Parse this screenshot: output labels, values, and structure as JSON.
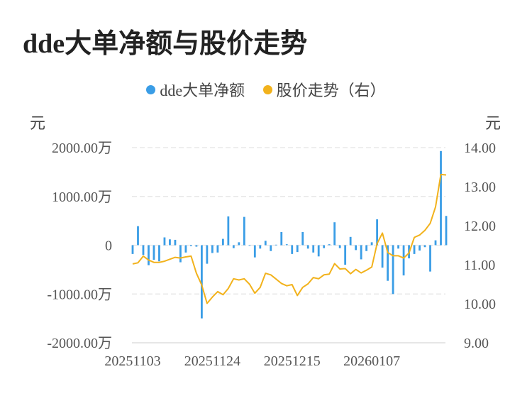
{
  "title": "dde大单净额与股价走势",
  "colors": {
    "bars": "#3a9de6",
    "price": "#f2b21c",
    "grid": "#e4e4e4",
    "axis": "#cccccc"
  },
  "chart_data": {
    "type": "bar",
    "title": "dde大单净额与股价走势",
    "legend": {
      "placement": "top-center",
      "items": [
        "dde大单净额",
        "股价走势（右）"
      ]
    },
    "unit_left": "元",
    "unit_right": "元",
    "y_left": {
      "range": [
        -2000,
        2000
      ],
      "ticks": [
        2000,
        1000,
        0,
        -1000,
        -2000
      ],
      "labels": [
        "2000.00万",
        "1000.00万",
        "0",
        "-1000.00万",
        "-2000.00万"
      ]
    },
    "y_right": {
      "range": [
        9,
        14
      ],
      "ticks": [
        14,
        13,
        12,
        11,
        10,
        9
      ],
      "labels": [
        "14.00",
        "13.00",
        "12.00",
        "11.00",
        "10.00",
        "9.00"
      ]
    },
    "x_tick_labels": [
      {
        "index": 0,
        "label": "20251103"
      },
      {
        "index": 15,
        "label": "20251124"
      },
      {
        "index": 30,
        "label": "20251215"
      },
      {
        "index": 45,
        "label": "20260107"
      }
    ],
    "grid": true,
    "series": [
      {
        "name": "dde大单净额",
        "type": "bar",
        "axis": "left",
        "values": [
          -180,
          390,
          -200,
          -410,
          -300,
          -330,
          160,
          120,
          110,
          -350,
          -150,
          -20,
          -30,
          -1500,
          -380,
          -160,
          -150,
          130,
          590,
          -60,
          60,
          580,
          -10,
          -250,
          -70,
          90,
          -120,
          10,
          270,
          20,
          -180,
          -140,
          270,
          -70,
          -150,
          -230,
          -60,
          20,
          470,
          -60,
          -400,
          170,
          -100,
          -290,
          -120,
          60,
          530,
          -460,
          -730,
          -1000,
          -70,
          -620,
          -270,
          -180,
          -110,
          -40,
          -540,
          100,
          1930,
          600
        ]
      },
      {
        "name": "股价走势（右）",
        "type": "line",
        "axis": "right",
        "values": [
          11.02,
          11.05,
          11.22,
          11.12,
          11.06,
          11.06,
          11.09,
          11.14,
          11.19,
          11.17,
          11.2,
          11.22,
          10.78,
          10.48,
          10.01,
          10.17,
          10.31,
          10.23,
          10.39,
          10.64,
          10.61,
          10.64,
          10.5,
          10.27,
          10.42,
          10.78,
          10.74,
          10.63,
          10.52,
          10.46,
          10.49,
          10.21,
          10.42,
          10.51,
          10.67,
          10.64,
          10.74,
          10.76,
          11.03,
          10.89,
          10.9,
          10.77,
          10.88,
          10.79,
          10.86,
          10.94,
          11.54,
          11.81,
          11.31,
          11.23,
          11.23,
          11.17,
          11.3,
          11.7,
          11.76,
          11.88,
          12.06,
          12.48,
          13.31,
          13.3
        ]
      }
    ]
  }
}
